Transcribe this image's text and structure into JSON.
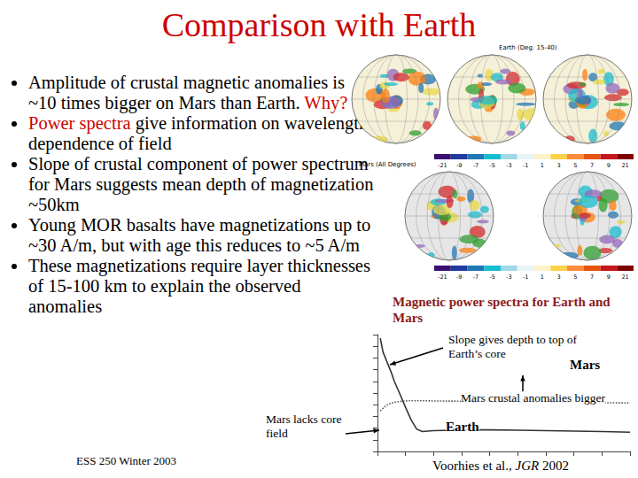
{
  "slide": {
    "title": "Comparison with Earth",
    "bullets": [
      [
        {
          "text": "Amplitude of crustal magnetic anomalies is ~10 times bigger on Mars than Earth. ",
          "red": false
        },
        {
          "text": "Why?",
          "red": true
        }
      ],
      [
        {
          "text": "Power spectra",
          "red": true
        },
        {
          "text": " give information on wavelength-dependence of field",
          "red": false
        }
      ],
      [
        {
          "text": "Slope of crustal component of power spectrum for Mars suggests mean depth of magnetization ~50km",
          "red": false
        }
      ],
      [
        {
          "text": "Young MOR basalts have magnetizations up to ~30 A/m, but with age this reduces to ~5 A/m",
          "red": false
        }
      ],
      [
        {
          "text": "These magnetizations require layer thicknesses of 15-100 km to explain the observed anomalies",
          "red": false
        }
      ]
    ],
    "footer": "ESS 250 Winter 2003",
    "citation": {
      "authors": "Voorhies et al.,",
      "journal": "JGR",
      "year": "2002"
    }
  },
  "maps": {
    "earth_title": "Earth (Deg: 15-40)",
    "mars_title": "Mars (All Degrees)",
    "colorbar_labels": [
      -21,
      -9,
      -7,
      -5,
      -3,
      -1,
      1,
      3,
      5,
      7,
      9,
      21
    ]
  },
  "annotations": {
    "heading": "Magnetic power spectra for Earth and Mars",
    "slope": "Slope gives depth to top of Earth’s core",
    "mars": "Mars",
    "bigger": "Mars crustal anomalies bigger",
    "earth": "Earth",
    "lacks": "Mars lacks core field"
  },
  "chart_data": {
    "type": "line",
    "log": "y",
    "tick_labels": false,
    "grid": false,
    "xlim": [
      0,
      90
    ],
    "xticks": [
      0,
      10,
      20,
      30,
      40,
      50,
      60,
      70,
      80,
      90
    ],
    "ylim": [
      0.1,
      1000000000
    ],
    "yticks": [
      0.1,
      1,
      10,
      100,
      1000,
      10000,
      100000,
      1000000,
      10000000,
      100000000,
      1000000000
    ],
    "x": [
      1,
      2,
      3,
      4,
      5,
      6,
      8,
      10,
      12,
      14,
      16,
      20,
      30,
      40,
      50,
      60,
      70,
      80,
      90
    ],
    "series": [
      {
        "name": "Earth",
        "color": "#333333",
        "line_style": "solid",
        "values": [
          500000000,
          30000000,
          8000000,
          2000000,
          500000,
          100000,
          8000,
          600,
          50,
          8,
          5,
          6,
          7,
          7,
          6.5,
          6,
          5.5,
          5,
          4.5
        ]
      },
      {
        "name": "Mars",
        "color": "#555555",
        "line_style": "dotted",
        "values": [
          300,
          500,
          800,
          1100,
          1400,
          1600,
          1900,
          2100,
          2200,
          2200,
          2200,
          2100,
          2000,
          1900,
          1800,
          1700,
          1600,
          1500,
          1400
        ]
      }
    ]
  }
}
